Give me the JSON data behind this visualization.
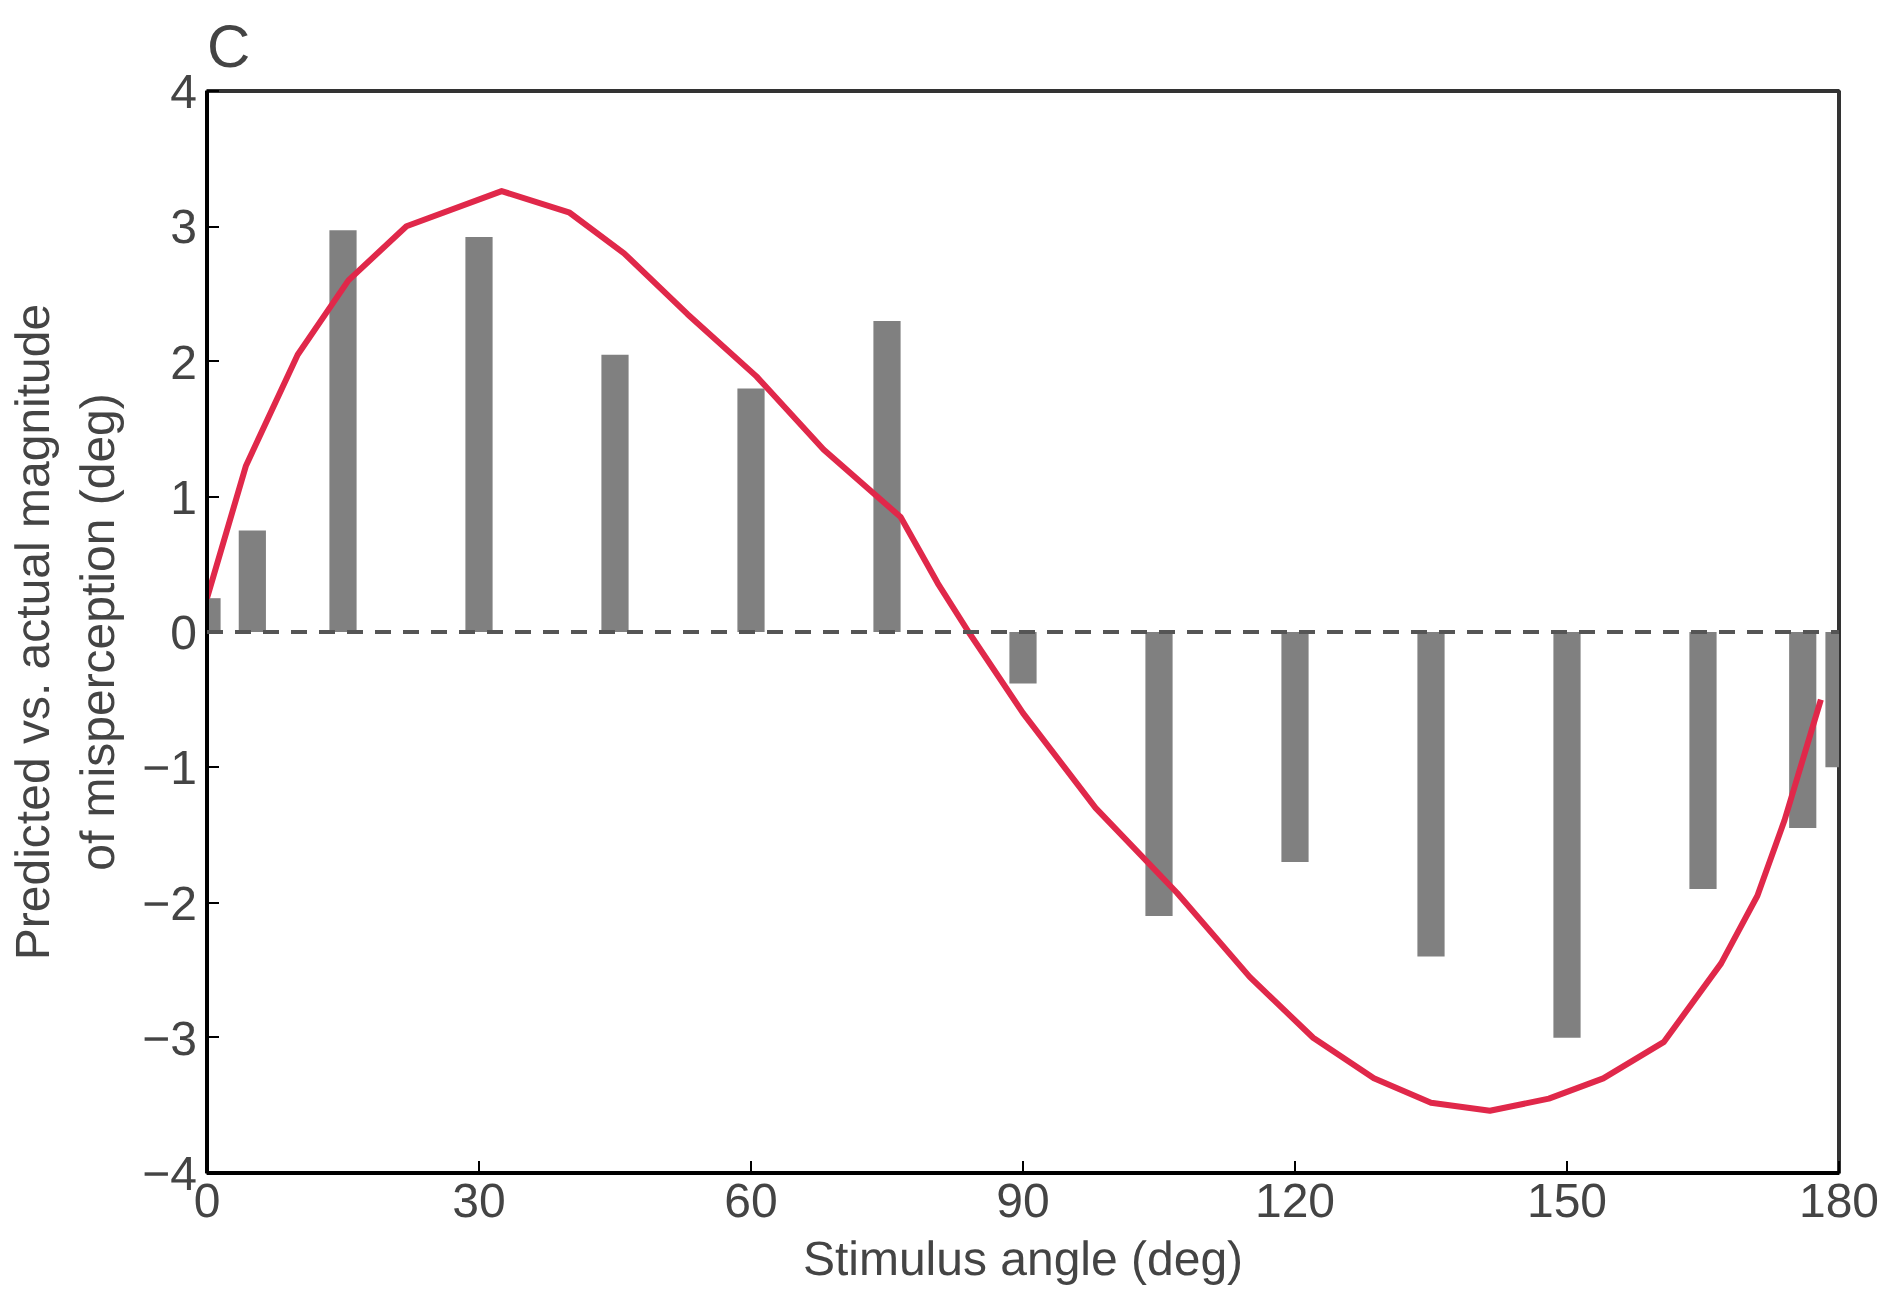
{
  "chart_data": {
    "type": "bar",
    "title": "C",
    "xlabel": "Stimulus angle (deg)",
    "ylabel": "Predicted vs. actual magnitude\nof misperception (deg)",
    "xlim": [
      0,
      180
    ],
    "xticks": [
      0,
      30,
      60,
      90,
      120,
      150,
      180
    ],
    "ylim": [
      -4,
      4
    ],
    "yticks": [
      -4,
      -3,
      -2,
      -1,
      0,
      1,
      2,
      3,
      4
    ],
    "grid": false,
    "series": [
      {
        "color": "#808080",
        "x": [
          0,
          5,
          15,
          30,
          45,
          60,
          75,
          90,
          105,
          120,
          135,
          150,
          165,
          176,
          180
        ],
        "values": [
          0.25,
          0.75,
          2.97,
          2.92,
          2.05,
          1.8,
          2.3,
          -0.38,
          -2.1,
          -1.7,
          -2.4,
          -3.0,
          -1.9,
          -1.45,
          -1.0
        ]
      },
      {
        "type": "line",
        "color": "#e0284a",
        "x": [
          0,
          4.3,
          10,
          15.6,
          22,
          32.5,
          40,
          46,
          53,
          60.6,
          68,
          76.5,
          80.6,
          84,
          90,
          98,
          107,
          115,
          122,
          128.7,
          135,
          141.5,
          148,
          154,
          160.7,
          167,
          171,
          174,
          178
        ],
        "values": [
          0.25,
          1.23,
          2.05,
          2.6,
          3.0,
          3.26,
          3.1,
          2.8,
          2.35,
          1.89,
          1.35,
          0.85,
          0.36,
          0.0,
          -0.6,
          -1.3,
          -1.93,
          -2.55,
          -3.0,
          -3.3,
          -3.48,
          -3.54,
          -3.45,
          -3.3,
          -3.03,
          -2.45,
          -1.95,
          -1.39,
          -0.5
        ]
      }
    ],
    "ref_lines": [
      {
        "axis": "y",
        "value": 0,
        "line_style": "dashed",
        "color": "#555555"
      }
    ]
  }
}
